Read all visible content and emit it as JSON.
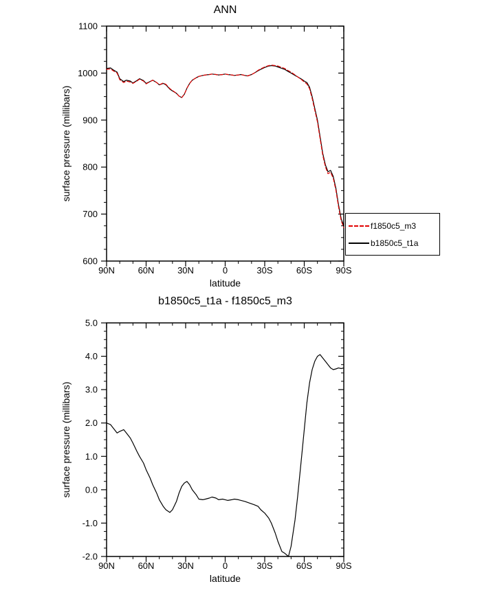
{
  "chart_data": [
    {
      "type": "line",
      "title": "ANN",
      "xlabel": "latitude",
      "ylabel": "surface pressure (millibars)",
      "xlim": [
        90,
        -90
      ],
      "ylim": [
        600,
        1100
      ],
      "grid": false,
      "legend_position": "outside-right-bottom",
      "xticks": [
        {
          "v": 90,
          "label": "90N"
        },
        {
          "v": 60,
          "label": "60N"
        },
        {
          "v": 30,
          "label": "30N"
        },
        {
          "v": 0,
          "label": "0"
        },
        {
          "v": -30,
          "label": "30S"
        },
        {
          "v": -60,
          "label": "60S"
        },
        {
          "v": -90,
          "label": "90S"
        }
      ],
      "x_minor_step": 10,
      "yticks": [
        {
          "v": 600,
          "label": "600"
        },
        {
          "v": 700,
          "label": "700"
        },
        {
          "v": 800,
          "label": "800"
        },
        {
          "v": 900,
          "label": "900"
        },
        {
          "v": 1000,
          "label": "1000"
        },
        {
          "v": 1100,
          "label": "1100"
        }
      ],
      "y_minor_step": 25,
      "x": [
        90,
        87,
        85,
        82,
        80,
        77,
        75,
        72,
        70,
        67,
        65,
        62,
        60,
        57,
        55,
        52,
        50,
        47,
        45,
        42,
        40,
        37,
        35,
        33,
        31,
        29,
        27,
        25,
        22,
        20,
        17,
        15,
        12,
        10,
        7,
        5,
        2,
        0,
        -2,
        -5,
        -7,
        -10,
        -12,
        -15,
        -17,
        -20,
        -22,
        -25,
        -27,
        -30,
        -33,
        -35,
        -38,
        -40,
        -43,
        -45,
        -48,
        -50,
        -53,
        -55,
        -58,
        -60,
        -62,
        -64,
        -66,
        -68,
        -70,
        -72,
        -74,
        -76,
        -78,
        -80,
        -82,
        -84,
        -86,
        -88,
        -90
      ],
      "series": [
        {
          "name": "f1850c5_m3",
          "color": "#e10000",
          "style": "dashed",
          "values": [
            1008,
            1009,
            1005,
            1000,
            986,
            980,
            983,
            981,
            978,
            983,
            987,
            983,
            977,
            982,
            985,
            980,
            975,
            979,
            976,
            967,
            963,
            957,
            951,
            948,
            955,
            968,
            978,
            985,
            990,
            993,
            995,
            996,
            997,
            998,
            997,
            996,
            997,
            998,
            997,
            996,
            995,
            996,
            997,
            995,
            994,
            997,
            1000,
            1006,
            1009,
            1013,
            1016,
            1017,
            1016,
            1015,
            1012,
            1010,
            1005,
            1002,
            996,
            992,
            986,
            981,
            977,
            967,
            946,
            921,
            896,
            861,
            826,
            801,
            786,
            789,
            776,
            751,
            716,
            686,
            671
          ]
        },
        {
          "name": "b1850c5_t1a",
          "color": "#000000",
          "style": "solid",
          "values": [
            1010,
            1011,
            1007,
            1002,
            988,
            982,
            985,
            983,
            979,
            984,
            988,
            984,
            978,
            982,
            985,
            980,
            975,
            978,
            975,
            966,
            962,
            957,
            951,
            948,
            955,
            968,
            978,
            985,
            990,
            993,
            995,
            996,
            997,
            998,
            997,
            996,
            997,
            998,
            997,
            996,
            995,
            996,
            997,
            995,
            994,
            997,
            1000,
            1005,
            1008,
            1012,
            1015,
            1016,
            1015,
            1013,
            1010,
            1008,
            1003,
            1000,
            995,
            992,
            987,
            983,
            980,
            970,
            950,
            925,
            900,
            865,
            830,
            805,
            790,
            793,
            780,
            755,
            720,
            690,
            675
          ]
        }
      ],
      "legend": {
        "entries": [
          "f1850c5_m3",
          "b1850c5_t1a"
        ]
      }
    },
    {
      "type": "line",
      "title": "b1850c5_t1a - f1850c5_m3",
      "xlabel": "latitude",
      "ylabel": "surface pressure (millibars)",
      "xlim": [
        90,
        -90
      ],
      "ylim": [
        -2.0,
        5.0
      ],
      "grid": false,
      "xticks": [
        {
          "v": 90,
          "label": "90N"
        },
        {
          "v": 60,
          "label": "60N"
        },
        {
          "v": 30,
          "label": "30N"
        },
        {
          "v": 0,
          "label": "0"
        },
        {
          "v": -30,
          "label": "30S"
        },
        {
          "v": -60,
          "label": "60S"
        },
        {
          "v": -90,
          "label": "90S"
        }
      ],
      "x_minor_step": 10,
      "yticks": [
        {
          "v": -2,
          "label": "-2.0"
        },
        {
          "v": -1,
          "label": "-1.0"
        },
        {
          "v": 0,
          "label": "0.0"
        },
        {
          "v": 1,
          "label": "1.0"
        },
        {
          "v": 2,
          "label": "2.0"
        },
        {
          "v": 3,
          "label": "3.0"
        },
        {
          "v": 4,
          "label": "4.0"
        },
        {
          "v": 5,
          "label": "5.0"
        }
      ],
      "y_minor_step": 0.25,
      "x": [
        90,
        87,
        85,
        82,
        80,
        77,
        75,
        72,
        70,
        67,
        65,
        62,
        60,
        57,
        55,
        52,
        50,
        47,
        45,
        42,
        40,
        37,
        35,
        33,
        31,
        29,
        27,
        25,
        22,
        20,
        17,
        15,
        12,
        10,
        7,
        5,
        2,
        0,
        -2,
        -5,
        -7,
        -10,
        -12,
        -15,
        -17,
        -20,
        -22,
        -25,
        -27,
        -30,
        -33,
        -35,
        -38,
        -40,
        -43,
        -45,
        -48,
        -50,
        -53,
        -55,
        -58,
        -60,
        -62,
        -64,
        -66,
        -68,
        -70,
        -72,
        -74,
        -76,
        -78,
        -80,
        -82,
        -84,
        -86,
        -88,
        -90
      ],
      "series": [
        {
          "name": "b1850c5_t1a - f1850c5_m3",
          "color": "#000000",
          "style": "solid",
          "values": [
            2.0,
            1.95,
            1.85,
            1.7,
            1.75,
            1.8,
            1.7,
            1.55,
            1.4,
            1.15,
            1.0,
            0.8,
            0.6,
            0.35,
            0.15,
            -0.1,
            -0.3,
            -0.5,
            -0.6,
            -0.68,
            -0.6,
            -0.35,
            -0.1,
            0.1,
            0.2,
            0.25,
            0.15,
            0.0,
            -0.15,
            -0.28,
            -0.3,
            -0.28,
            -0.25,
            -0.22,
            -0.25,
            -0.3,
            -0.28,
            -0.3,
            -0.32,
            -0.3,
            -0.28,
            -0.3,
            -0.32,
            -0.35,
            -0.38,
            -0.42,
            -0.45,
            -0.5,
            -0.6,
            -0.7,
            -0.85,
            -1.0,
            -1.3,
            -1.55,
            -1.85,
            -1.9,
            -2.0,
            -1.7,
            -0.9,
            -0.2,
            1.0,
            1.8,
            2.6,
            3.2,
            3.6,
            3.85,
            4.0,
            4.05,
            3.95,
            3.85,
            3.75,
            3.65,
            3.6,
            3.62,
            3.65,
            3.63,
            3.65
          ]
        }
      ]
    }
  ]
}
